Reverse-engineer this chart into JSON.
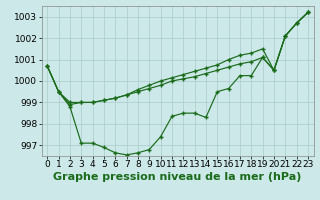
{
  "xlabel": "Graphe pression niveau de la mer (hPa)",
  "background_color": "#cce8e8",
  "grid_color": "#aacccc",
  "line_color": "#1a6b1a",
  "ylim": [
    996.5,
    1003.5
  ],
  "xlim": [
    -0.5,
    23.5
  ],
  "yticks": [
    997,
    998,
    999,
    1000,
    1001,
    1002,
    1003
  ],
  "xticks": [
    0,
    1,
    2,
    3,
    4,
    5,
    6,
    7,
    8,
    9,
    10,
    11,
    12,
    13,
    14,
    15,
    16,
    17,
    18,
    19,
    20,
    21,
    22,
    23
  ],
  "line1_high": [
    1000.7,
    999.5,
    998.9,
    999.0,
    999.0,
    999.1,
    999.2,
    999.35,
    999.5,
    999.65,
    999.8,
    1000.0,
    1000.1,
    1000.2,
    1000.35,
    1000.5,
    1000.65,
    1000.8,
    1000.9,
    1001.1,
    1000.5,
    1002.1,
    1002.7,
    1003.2
  ],
  "line2_upper": [
    1000.7,
    999.5,
    999.0,
    999.0,
    999.0,
    999.1,
    999.2,
    999.35,
    999.6,
    999.8,
    1000.0,
    1000.15,
    1000.3,
    1000.45,
    1000.6,
    1000.75,
    1001.0,
    1001.2,
    1001.3,
    1001.5,
    1000.5,
    1002.1,
    1002.7,
    1003.2
  ],
  "line3_low": [
    1000.7,
    999.5,
    998.8,
    997.1,
    997.1,
    996.9,
    996.65,
    996.55,
    996.65,
    996.8,
    997.4,
    998.35,
    998.5,
    998.5,
    998.3,
    999.5,
    999.65,
    1000.25,
    1000.25,
    1001.1,
    1000.5,
    1002.1,
    1002.7,
    1003.2
  ],
  "xlabel_fontsize": 8,
  "tick_fontsize": 6.5
}
